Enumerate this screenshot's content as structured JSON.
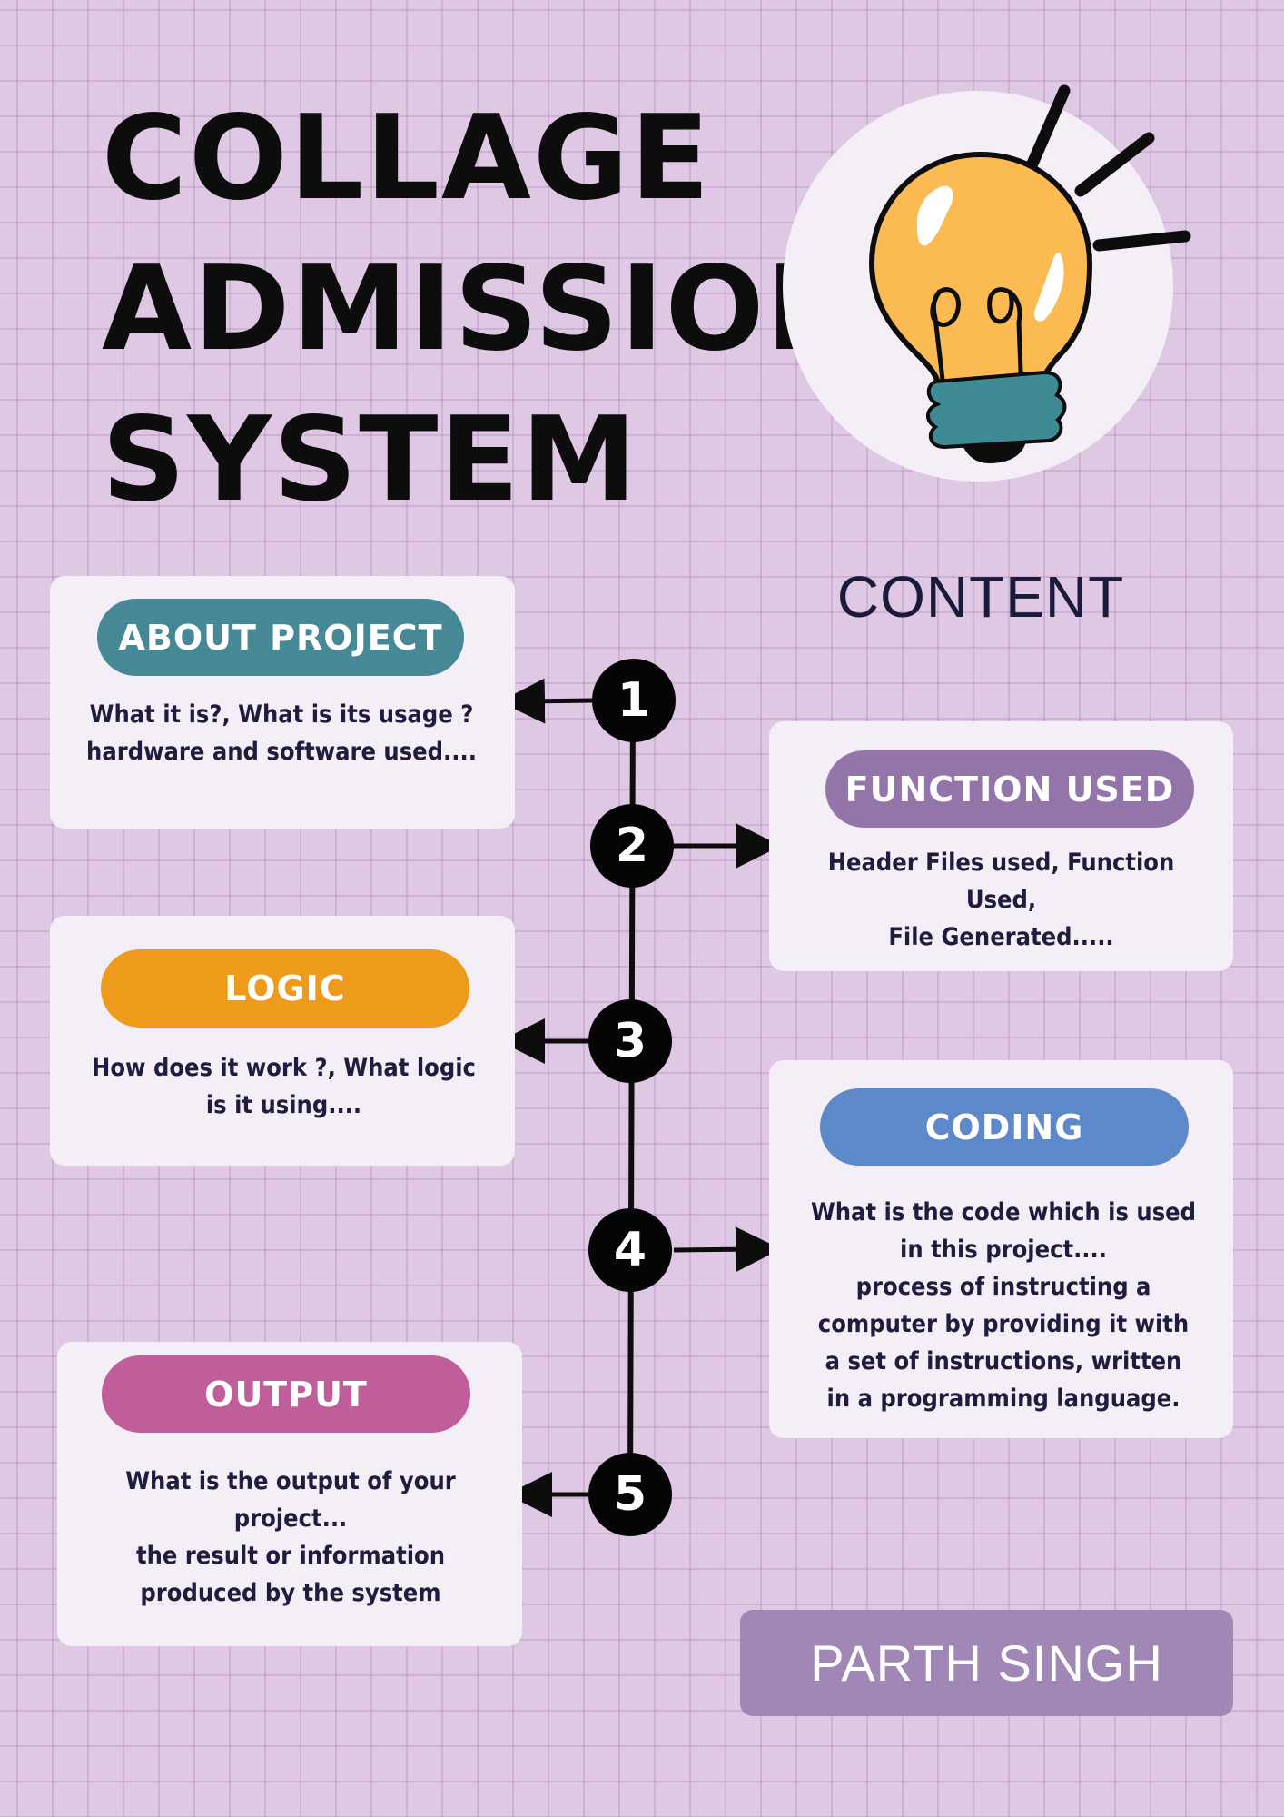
{
  "title": {
    "line1": "COLLAGE",
    "line2": "ADMISSION",
    "line3": "SYSTEM"
  },
  "content_heading": "CONTENT",
  "sections": [
    {
      "number": "1",
      "label": "ABOUT PROJECT",
      "description": "What it is?, What is its usage ?\nhardware and software used....",
      "color": "#468896"
    },
    {
      "number": "2",
      "label": "FUNCTION USED",
      "description": "Header Files used, Function\nUsed,\nFile Generated.....",
      "color": "#9475aa"
    },
    {
      "number": "3",
      "label": "LOGIC",
      "description": "How does it work ?, What logic\nis it using....",
      "color": "#ee9a1a"
    },
    {
      "number": "4",
      "label": "CODING",
      "description": "What is the code which is used\nin this project....\nprocess of instructing a\ncomputer by providing it with\na set of instructions, written\nin a programming language.",
      "color": "#5d89cb"
    },
    {
      "number": "5",
      "label": "OUTPUT",
      "description": "What is the output of your\nproject...\nthe result or information\nproduced by the system",
      "color": "#bf5e98"
    }
  ],
  "author": "PARTH SINGH",
  "illustration": "lightbulb-icon",
  "colors": {
    "background": "#dfc8e4",
    "card": "#f4eef6",
    "author_box": "#a087b5",
    "text_dark": "#1e1d3d"
  }
}
